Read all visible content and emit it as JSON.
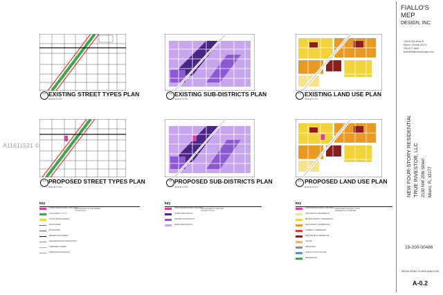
{
  "title_block": {
    "firm_line1": "FIALLO'S",
    "firm_line2": "MEP",
    "firm_line3": "DESIGN, INC",
    "address": [
      "13010 SW 83rd St",
      "Miami, Florida 33173",
      "305.677.1843",
      "jfallo@fiallomepdesign.com"
    ],
    "project_line1": "NEW FOUR-STORY RESIDENTIAL BUILDING",
    "project_line2": "TRUE INVESTOR, LLC",
    "project_line3": "2130 NW 20th Street",
    "project_line4": "Miami, FL 33177",
    "permit_no": "19-200-00486",
    "sheet_name": "REGULATING PLANS ANALYSIS",
    "sheet_no": "A-0.2"
  },
  "watermark": "A11611521 © Miami",
  "panels": [
    {
      "title": "EXISTING STREET TYPES PLAN",
      "num": "1.A",
      "scale": "SCALE: N.T.S."
    },
    {
      "title": "EXISTING SUB-DISTRICTS PLAN",
      "num": "1.B",
      "scale": "SCALE: N.T.S."
    },
    {
      "title": "EXISTING LAND USE PLAN",
      "num": "1.C",
      "scale": "SCALE: N.T.S."
    },
    {
      "title": "PROPOSED STREET TYPES PLAN",
      "num": "2.A",
      "scale": "SCALE: N.T.S."
    },
    {
      "title": "PROPOSED SUB-DISTRICTS PLAN",
      "num": "2.B",
      "scale": "SCALE: N.T.S."
    },
    {
      "title": "PROPOSED LAND USE PLAN",
      "num": "2.C",
      "scale": "SCALE: N.T.S."
    }
  ],
  "key": {
    "heading": "key",
    "street_rows": [
      "PROPOSED BUILDING SITE AREA",
      "US HIGHWAY / U.S. 1",
      "SOUTH DIXIE HIGHWAY",
      "MAIN STREET",
      "BOULEVARD",
      "RESIDENTIAL STREET",
      "NEIGHBORHOOD SUB-DISTRICT",
      "SUBURBAN STREET",
      "PEDESTRIAN PASSAGE"
    ],
    "street_note": "NO CHANGES IN THE STREET TYPES PLAN",
    "district_rows": [
      "PROPOSED BUILDING SITE AREA",
      "CORE SUB-DISTRICT",
      "CENTER SUB-DISTRICT",
      "EDGE SUB-DISTRICT"
    ],
    "district_note": "NO CHANGES IN THE SUB-DISTRICT PLAN",
    "landuse_rows": [
      "PROPOSED BUILDING SITE AREA",
      "LOW DENSITY RESIDENTIAL",
      "MEDIUM DENSITY RESIDENTIAL",
      "HIGH DENSITY RESIDENTIAL",
      "GENERAL COMMERCIAL",
      "RESTRICTED COMMERCIAL",
      "OFFICE",
      "INDUSTRIAL",
      "PUBLIC / INSTITUTIONAL",
      "RECREATION"
    ],
    "landuse_note": "PROPOSED CHANGE TO RM RESIDENTIAL MODIFIED"
  },
  "colors": {
    "green": "#3aa84a",
    "red": "#d83a3a",
    "purple_dark": "#4b2585",
    "purple_mid": "#8b5ad0",
    "purple_light": "#c7a6ee",
    "yellow": "#f3d33a",
    "orange": "#e99a24",
    "dark_red": "#8a1f1f",
    "magenta": "#e23ea0"
  }
}
